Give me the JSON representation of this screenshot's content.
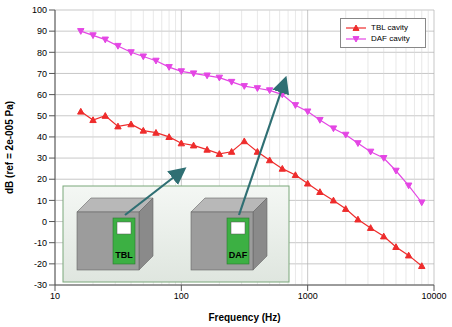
{
  "chart_data": {
    "type": "line",
    "x_label": "Frequency (Hz)",
    "y_label": "dB (ref = 2e-005 Pa)",
    "x": [
      16,
      20,
      25,
      31.5,
      40,
      50,
      63,
      80,
      100,
      125,
      160,
      200,
      250,
      315,
      400,
      500,
      630,
      800,
      1000,
      1250,
      1600,
      2000,
      2500,
      3150,
      4000,
      5000,
      6300,
      8000
    ],
    "series": [
      {
        "name": "TBL cavity",
        "color": "#ee2c2c",
        "marker": "triangle-up",
        "values": [
          52,
          48,
          50,
          45,
          46,
          43,
          42,
          40,
          37,
          36,
          34,
          32,
          33,
          38,
          33,
          29,
          25,
          22,
          18,
          14,
          10,
          6,
          1,
          -3,
          -7,
          -12,
          -16,
          -21
        ]
      },
      {
        "name": "DAF cavity",
        "color": "#e446e4",
        "marker": "triangle-down",
        "values": [
          90,
          88,
          86,
          83,
          80,
          78,
          76,
          73,
          71,
          70,
          69,
          68,
          66,
          64,
          63,
          62,
          60,
          55,
          52,
          48,
          44,
          41,
          37,
          33,
          30,
          24,
          17,
          9
        ]
      }
    ],
    "xlim": [
      10,
      10000
    ],
    "xticks": [
      10,
      100,
      1000,
      10000
    ],
    "ylim": [
      -30,
      100
    ],
    "yticks": [
      -30,
      -20,
      -10,
      0,
      10,
      20,
      30,
      40,
      50,
      60,
      70,
      80,
      90,
      100
    ],
    "log": "x",
    "grid": true,
    "legend": "upper right",
    "annotations": [
      "TBL",
      "DAF"
    ]
  }
}
